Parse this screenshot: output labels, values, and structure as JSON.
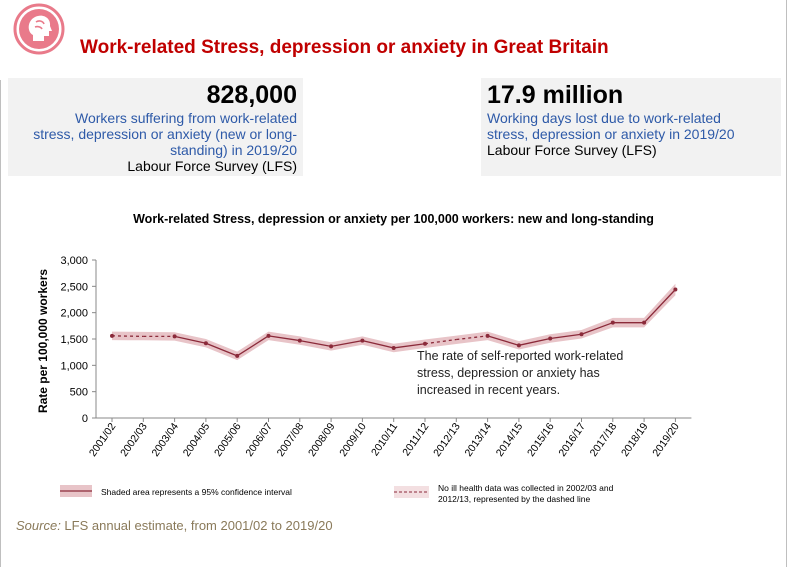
{
  "header": {
    "title": "Work-related Stress, depression or anxiety in Great Britain",
    "logo_icon": "head-profile-icon",
    "accent_color": "#c00000"
  },
  "stat_left": {
    "value": "828,000",
    "description_lines": [
      "Workers suffering from work-related",
      "stress, depression or anxiety (new or long-",
      "standing) in 2019/20"
    ],
    "source": "Labour Force Survey (LFS)"
  },
  "stat_right": {
    "value": "17.9 million",
    "description_lines": [
      "Working days lost due to work-related",
      "stress, depression or anxiety in 2019/20"
    ],
    "source": "Labour Force Survey (LFS)"
  },
  "chart_data": {
    "type": "line",
    "title": "Work-related Stress, depression or anxiety per 100,000 workers: new and long-standing",
    "xlabel": "",
    "ylabel": "Rate per 100,000 workers",
    "ylim": [
      0,
      3000
    ],
    "yticks": [
      0,
      500,
      1000,
      1500,
      2000,
      2500,
      3000
    ],
    "ytick_labels": [
      "0",
      "500",
      "1,000",
      "1,500",
      "2,000",
      "2,500",
      "3,000"
    ],
    "categories": [
      "2001/02",
      "2002/03",
      "2003/04",
      "2004/05",
      "2005/06",
      "2006/07",
      "2007/08",
      "2008/09",
      "2009/10",
      "2010/11",
      "2011/12",
      "2012/13",
      "2013/14",
      "2014/15",
      "2015/16",
      "2016/17",
      "2017/18",
      "2018/19",
      "2019/20"
    ],
    "series": [
      {
        "values": [
          1560,
          1550,
          1550,
          1420,
          1180,
          1560,
          1470,
          1360,
          1470,
          1330,
          1410,
          1490,
          1560,
          1380,
          1510,
          1590,
          1810,
          1810,
          2440
        ],
        "ci_lower": [
          1480,
          null,
          1470,
          1340,
          1100,
          1480,
          1390,
          1280,
          1390,
          1250,
          1330,
          null,
          1480,
          1300,
          1430,
          1510,
          1720,
          1720,
          2330
        ],
        "ci_upper": [
          1640,
          null,
          1630,
          1500,
          1260,
          1640,
          1550,
          1440,
          1550,
          1410,
          1490,
          null,
          1640,
          1460,
          1590,
          1670,
          1900,
          1900,
          2550
        ],
        "no_data_years": [
          "2002/03",
          "2012/13"
        ],
        "color": "#8b2a3a",
        "band_color": "#e8c4c8"
      }
    ],
    "annotation": [
      "The rate of self-reported work-related",
      "stress, depression or anxiety has",
      "increased in recent years."
    ],
    "legend": [
      {
        "kind": "band",
        "label": "Shaded area represents a 95% confidence interval"
      },
      {
        "kind": "dashed",
        "label_lines": [
          "No ill health data was collected in 2002/03 and",
          "2012/13, represented by the dashed line"
        ]
      }
    ],
    "legend_placement": "bottom",
    "grid": false
  },
  "footer": {
    "source_label": "Source:",
    "source_text": " LFS annual estimate, from 2001/02 to 2019/20"
  }
}
